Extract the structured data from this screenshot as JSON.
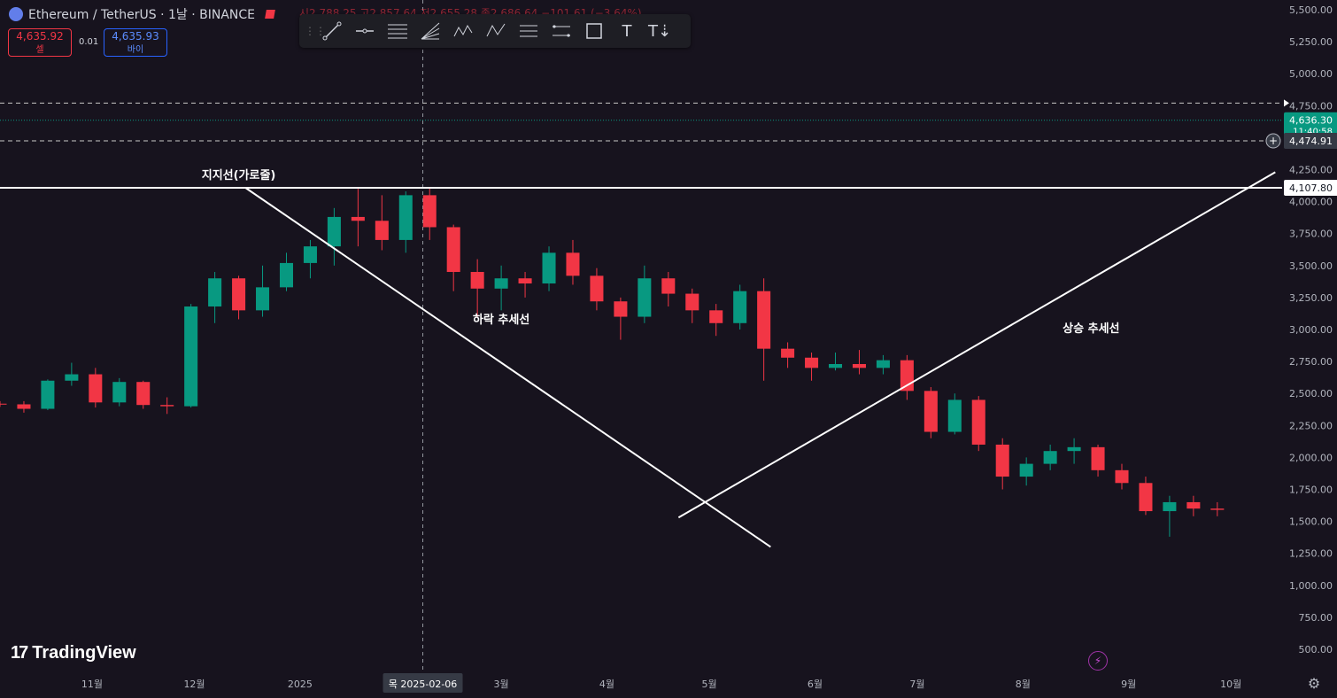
{
  "header": {
    "symbol": "Ethereum / TetherUS · 1날 · BINANCE",
    "ohlc": "시2,788.25 고2,857.64 저2,655.28 종2,686.64 −101.61 (−3.64%)"
  },
  "trade": {
    "sell_price": "4,635.92",
    "sell_label": "셀",
    "buy_price": "4,635.93",
    "buy_label": "바이",
    "spread": "0.01"
  },
  "toolbar": {
    "tools": [
      "trend-line-icon",
      "horizontal-ray-icon",
      "parallel-lines-icon",
      "fib-fan-icon",
      "xabcd-pattern-icon",
      "abcd-pattern-icon",
      "price-range-icon",
      "date-range-icon",
      "rectangle-icon",
      "text-icon",
      "anchored-text-icon"
    ],
    "labels": {
      "text": "T"
    }
  },
  "branding": {
    "name": "TradingView"
  },
  "chart_data": {
    "type": "candlestick",
    "y_axis": {
      "min": 500,
      "max": 5500,
      "ticks": [
        "5,500.00",
        "5,250.00",
        "5,000.00",
        "4,750.00",
        "4,500.00",
        "4,250.00",
        "4,000.00",
        "3,750.00",
        "3,500.00",
        "3,250.00",
        "3,000.00",
        "2,750.00",
        "2,500.00",
        "2,250.00",
        "2,000.00",
        "1,750.00",
        "1,500.00",
        "1,250.00",
        "1,000.00",
        "750.00",
        "500.00"
      ],
      "tick_values": [
        5500,
        5250,
        5000,
        4750,
        4500,
        4250,
        4000,
        3750,
        3500,
        3250,
        3000,
        2750,
        2500,
        2250,
        2000,
        1750,
        1500,
        1250,
        1000,
        750,
        500
      ]
    },
    "x_axis": {
      "labels": [
        "11월",
        "12월",
        "2025",
        "3월",
        "4월",
        "5월",
        "6월",
        "7월",
        "8월",
        "9월",
        "10월"
      ],
      "label_dates": [
        "2024-11-01",
        "2024-12-01",
        "2025-01-01",
        "2025-03-01",
        "2025-04-01",
        "2025-05-01",
        "2025-06-01",
        "2025-07-01",
        "2025-08-01",
        "2025-09-01",
        "2025-10-01"
      ],
      "range": [
        "2024-10-05",
        "2025-10-16"
      ],
      "crosshair_label": "목 2025-02-06",
      "crosshair_date": "2025-02-06"
    },
    "price_labels": {
      "current": "4,636.30",
      "countdown": "11:40:58",
      "support": "4,107.80",
      "hover": "4,474.91"
    },
    "dashed_levels": [
      4770,
      4474.91
    ],
    "annotations": {
      "support_label": "지지선(가로줄)",
      "down_trend_label": "하락 추세선",
      "up_trend_label": "상승 추세선"
    },
    "support_level": 4107.8,
    "down_trendline": {
      "start": [
        "2024-12-16",
        4108
      ],
      "end": [
        "2025-05-19",
        1300
      ]
    },
    "up_trendline": {
      "start": [
        "2025-04-22",
        1530
      ],
      "end": [
        "2025-10-14",
        4230
      ]
    },
    "colors": {
      "up": "#089981",
      "down": "#f23645",
      "bg": "#17131e",
      "line": "#ffffff"
    },
    "candles": [
      {
        "d": "2024-10-05",
        "c": [
          2420,
          2440,
          2395,
          2415
        ]
      },
      {
        "d": "2024-10-12",
        "c": [
          2415,
          2440,
          2350,
          2380
        ]
      },
      {
        "d": "2024-10-19",
        "c": [
          2380,
          2610,
          2370,
          2600
        ]
      },
      {
        "d": "2024-10-26",
        "c": [
          2600,
          2740,
          2560,
          2650
        ]
      },
      {
        "d": "2024-11-02",
        "c": [
          2650,
          2700,
          2390,
          2430
        ]
      },
      {
        "d": "2024-11-09",
        "c": [
          2430,
          2620,
          2400,
          2590
        ]
      },
      {
        "d": "2024-11-16",
        "c": [
          2590,
          2600,
          2380,
          2410
        ]
      },
      {
        "d": "2024-11-23",
        "c": [
          2410,
          2470,
          2340,
          2400
        ]
      },
      {
        "d": "2024-11-30",
        "c": [
          2400,
          3200,
          2390,
          3180
        ]
      },
      {
        "d": "2024-12-07",
        "c": [
          3180,
          3450,
          3050,
          3400
        ]
      },
      {
        "d": "2024-12-14",
        "c": [
          3400,
          3420,
          3080,
          3150
        ]
      },
      {
        "d": "2024-12-21",
        "c": [
          3150,
          3500,
          3100,
          3330
        ]
      },
      {
        "d": "2024-12-28",
        "c": [
          3330,
          3600,
          3300,
          3520
        ]
      },
      {
        "d": "2025-01-04",
        "c": [
          3520,
          3700,
          3400,
          3650
        ]
      },
      {
        "d": "2025-01-11",
        "c": [
          3650,
          3950,
          3500,
          3880
        ]
      },
      {
        "d": "2025-01-18",
        "c": [
          3880,
          4100,
          3650,
          3850
        ]
      },
      {
        "d": "2025-01-25",
        "c": [
          3850,
          4050,
          3620,
          3700
        ]
      },
      {
        "d": "2025-02-01",
        "c": [
          3700,
          4080,
          3600,
          4050
        ]
      },
      {
        "d": "2025-02-08",
        "c": [
          4050,
          4108,
          3700,
          3800
        ]
      },
      {
        "d": "2025-02-15",
        "c": [
          3800,
          3820,
          3300,
          3450
        ]
      },
      {
        "d": "2025-02-22",
        "c": [
          3450,
          3550,
          3100,
          3320
        ]
      },
      {
        "d": "2025-03-01",
        "c": [
          3320,
          3500,
          3150,
          3400
        ]
      },
      {
        "d": "2025-03-08",
        "c": [
          3400,
          3450,
          3250,
          3360
        ]
      },
      {
        "d": "2025-03-15",
        "c": [
          3360,
          3650,
          3300,
          3600
        ]
      },
      {
        "d": "2025-03-22",
        "c": [
          3600,
          3700,
          3350,
          3420
        ]
      },
      {
        "d": "2025-03-29",
        "c": [
          3420,
          3480,
          3150,
          3220
        ]
      },
      {
        "d": "2025-04-05",
        "c": [
          3220,
          3250,
          2920,
          3100
        ]
      },
      {
        "d": "2025-04-12",
        "c": [
          3100,
          3500,
          3050,
          3400
        ]
      },
      {
        "d": "2025-04-19",
        "c": [
          3400,
          3450,
          3180,
          3280
        ]
      },
      {
        "d": "2025-04-26",
        "c": [
          3280,
          3320,
          3050,
          3150
        ]
      },
      {
        "d": "2025-05-03",
        "c": [
          3150,
          3200,
          2950,
          3050
        ]
      },
      {
        "d": "2025-05-10",
        "c": [
          3050,
          3350,
          3000,
          3300
        ]
      },
      {
        "d": "2025-05-17",
        "c": [
          3300,
          3400,
          2600,
          2850
        ]
      },
      {
        "d": "2025-05-24",
        "c": [
          2850,
          2900,
          2700,
          2780
        ]
      },
      {
        "d": "2025-05-31",
        "c": [
          2780,
          2820,
          2600,
          2700
        ]
      },
      {
        "d": "2025-06-07",
        "c": [
          2700,
          2820,
          2680,
          2730
        ]
      },
      {
        "d": "2025-06-14",
        "c": [
          2730,
          2840,
          2650,
          2700
        ]
      },
      {
        "d": "2025-06-21",
        "c": [
          2700,
          2800,
          2650,
          2760
        ]
      },
      {
        "d": "2025-06-28",
        "c": [
          2760,
          2800,
          2450,
          2520
        ]
      },
      {
        "d": "2025-07-05",
        "c": [
          2520,
          2550,
          2150,
          2200
        ]
      },
      {
        "d": "2025-07-12",
        "c": [
          2200,
          2500,
          2180,
          2450
        ]
      },
      {
        "d": "2025-07-19",
        "c": [
          2450,
          2480,
          2050,
          2100
        ]
      },
      {
        "d": "2025-07-26",
        "c": [
          2100,
          2150,
          1750,
          1850
        ]
      },
      {
        "d": "2025-08-02",
        "c": [
          1850,
          2000,
          1780,
          1950
        ]
      },
      {
        "d": "2025-08-09",
        "c": [
          1950,
          2100,
          1900,
          2050
        ]
      },
      {
        "d": "2025-08-16",
        "c": [
          2050,
          2150,
          1950,
          2080
        ]
      },
      {
        "d": "2025-08-23",
        "c": [
          2080,
          2100,
          1850,
          1900
        ]
      },
      {
        "d": "2025-08-30",
        "c": [
          1900,
          1950,
          1750,
          1800
        ]
      },
      {
        "d": "2025-09-06",
        "c": [
          1800,
          1850,
          1550,
          1580
        ]
      },
      {
        "d": "2025-09-13",
        "c": [
          1580,
          1700,
          1380,
          1650
        ]
      },
      {
        "d": "2025-09-20",
        "c": [
          1650,
          1700,
          1540,
          1600
        ]
      },
      {
        "d": "2025-09-27",
        "c": [
          1600,
          1650,
          1540,
          1590
        ]
      }
    ]
  }
}
